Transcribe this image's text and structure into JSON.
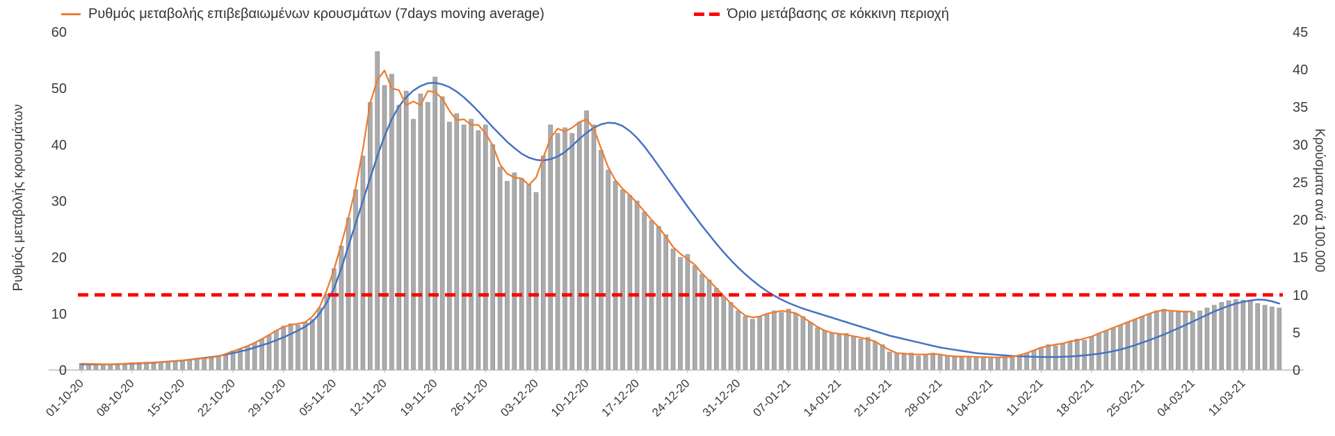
{
  "legend": {
    "ma_label": "Ρυθμός μεταβολής επιβεβαιωμένων κρουσμάτων (7days moving average)",
    "threshold_label": "Όριο μετάβασης σε κόκκινη περιοχή"
  },
  "axes": {
    "left_title": "Ρυθμός μεταβολής κρουσμάτων",
    "right_title": "Κρούσματα ανά 100.000",
    "left_ticks": [
      0,
      10,
      20,
      30,
      40,
      50,
      60
    ],
    "right_ticks": [
      0,
      5,
      10,
      15,
      20,
      25,
      30,
      35,
      40,
      45
    ]
  },
  "chart_data": {
    "type": "bar",
    "title": "",
    "legend_position": "top",
    "grid": false,
    "ylim_left": [
      0,
      60
    ],
    "ylim_right": [
      0,
      45
    ],
    "x_tick_every": 7,
    "x_tick_labels": [
      "01-10-20",
      "08-10-20",
      "15-10-20",
      "22-10-20",
      "29-10-20",
      "05-11-20",
      "12-11-20",
      "19-11-20",
      "26-11-20",
      "03-12-20",
      "10-12-20",
      "17-12-20",
      "24-12-20",
      "31-12-20",
      "07-01-21",
      "14-01-21",
      "21-01-21",
      "28-01-21",
      "04-02-21",
      "11-02-21",
      "18-02-21",
      "25-02-21",
      "04-03-21",
      "11-03-21"
    ],
    "series_info": [
      {
        "name": "daily-bars",
        "kind": "bar",
        "axis": "left"
      },
      {
        "name": "7day-moving-average",
        "kind": "line",
        "axis": "left",
        "end_index": 154
      },
      {
        "name": "smooth-trend",
        "kind": "line",
        "axis": "left"
      },
      {
        "name": "red-zone-threshold",
        "kind": "dashed-line",
        "axis": "right",
        "value": 10
      }
    ],
    "daily": [
      1.2,
      1.1,
      1.0,
      1.1,
      1.0,
      0.9,
      1.2,
      1.3,
      1.1,
      1.4,
      1.2,
      1.5,
      1.4,
      1.6,
      1.8,
      1.7,
      2.0,
      2.2,
      2.1,
      2.4,
      2.8,
      3.4,
      3.8,
      4.2,
      4.8,
      5.5,
      6.2,
      7.0,
      7.8,
      8.2,
      8.0,
      8.5,
      9.0,
      11.0,
      13.5,
      18.0,
      22.0,
      27.0,
      32.0,
      38.0,
      47.5,
      56.5,
      50.5,
      52.5,
      47.0,
      49.5,
      44.5,
      49.0,
      47.5,
      52.0,
      48.5,
      44.0,
      45.5,
      43.5,
      44.5,
      42.5,
      43.5,
      40.0,
      36.0,
      33.5,
      35.0,
      34.0,
      33.0,
      31.5,
      38.0,
      43.5,
      42.0,
      43.0,
      42.0,
      44.0,
      46.0,
      43.5,
      39.0,
      35.5,
      33.5,
      32.0,
      31.0,
      30.0,
      28.0,
      26.5,
      25.5,
      24.0,
      21.5,
      20.0,
      20.5,
      18.5,
      17.0,
      16.0,
      14.5,
      13.0,
      12.0,
      10.5,
      9.5,
      9.0,
      9.5,
      10.0,
      10.5,
      10.2,
      10.8,
      10.0,
      9.5,
      8.5,
      7.5,
      7.0,
      6.5,
      6.3,
      6.5,
      6.0,
      5.5,
      5.8,
      5.0,
      4.5,
      3.2,
      3.0,
      2.8,
      3.0,
      2.5,
      2.8,
      3.0,
      2.8,
      2.5,
      2.3,
      2.5,
      2.3,
      2.4,
      2.3,
      2.2,
      2.3,
      2.2,
      2.4,
      2.5,
      3.0,
      3.5,
      4.0,
      4.5,
      4.3,
      4.8,
      5.0,
      5.5,
      5.3,
      6.0,
      6.5,
      7.0,
      7.5,
      8.0,
      8.5,
      9.0,
      9.5,
      10.0,
      10.5,
      10.8,
      10.5,
      10.3,
      10.5,
      10.2,
      10.5,
      11.0,
      11.5,
      12.0,
      12.3,
      12.5,
      12.4,
      12.2,
      11.8,
      11.5,
      11.2,
      11.0
    ],
    "trend": [
      1.0,
      1.0,
      1.0,
      1.0,
      1.0,
      1.05,
      1.1,
      1.15,
      1.2,
      1.25,
      1.3,
      1.4,
      1.5,
      1.6,
      1.7,
      1.85,
      2.0,
      2.15,
      2.3,
      2.5,
      2.75,
      3.0,
      3.3,
      3.6,
      4.0,
      4.4,
      4.8,
      5.3,
      5.8,
      6.4,
      7.0,
      7.7,
      8.6,
      10.0,
      12.0,
      14.5,
      18.0,
      22.0,
      26.0,
      30.0,
      34.0,
      38.0,
      41.5,
      44.5,
      46.8,
      48.4,
      49.6,
      50.4,
      50.9,
      51.0,
      50.7,
      50.2,
      49.4,
      48.4,
      47.2,
      45.9,
      44.5,
      43.1,
      41.8,
      40.5,
      39.4,
      38.4,
      37.7,
      37.3,
      37.2,
      37.4,
      37.9,
      38.7,
      39.8,
      41.0,
      42.1,
      43.0,
      43.6,
      43.9,
      43.8,
      43.3,
      42.4,
      41.2,
      39.7,
      38.0,
      36.2,
      34.4,
      32.6,
      30.8,
      29.0,
      27.3,
      25.6,
      24.0,
      22.4,
      20.9,
      19.5,
      18.2,
      17.0,
      15.9,
      14.9,
      14.0,
      13.2,
      12.5,
      11.9,
      11.4,
      10.9,
      10.5,
      10.1,
      9.7,
      9.3,
      8.9,
      8.5,
      8.1,
      7.7,
      7.3,
      6.9,
      6.5,
      6.1,
      5.8,
      5.5,
      5.2,
      4.9,
      4.6,
      4.3,
      4.0,
      3.8,
      3.6,
      3.4,
      3.2,
      3.0,
      2.9,
      2.8,
      2.7,
      2.6,
      2.5,
      2.45,
      2.4,
      2.35,
      2.3,
      2.3,
      2.3,
      2.35,
      2.4,
      2.5,
      2.6,
      2.75,
      2.9,
      3.1,
      3.35,
      3.65,
      4.0,
      4.4,
      4.85,
      5.3,
      5.8,
      6.3,
      6.85,
      7.4,
      8.0,
      8.6,
      9.2,
      9.8,
      10.4,
      10.9,
      11.4,
      11.8,
      12.1,
      12.35,
      12.5,
      12.45,
      12.2,
      11.8
    ],
    "ma_end_index": 154,
    "threshold": {
      "value": 10,
      "axis": "right"
    },
    "colors": {
      "bar": "#ababab",
      "bar_edge": "#878787",
      "ma_line": "#ED7D31",
      "trend_line": "#4472C4",
      "threshold": "#FF0000",
      "axis_text": "#3b3b3b",
      "axis_line": "#b0b0b0"
    }
  }
}
